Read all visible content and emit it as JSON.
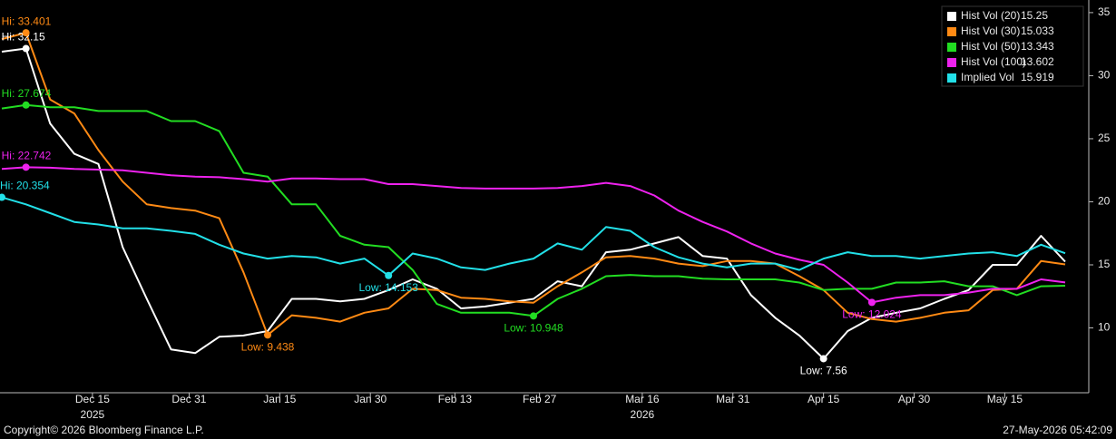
{
  "chart_data": {
    "type": "line",
    "x": [
      "2025-11-30",
      "2025-12-04",
      "2025-12-08",
      "2025-12-12",
      "2025-12-16",
      "2025-12-20",
      "2025-12-24",
      "2025-12-28",
      "2026-01-01",
      "2026-01-05",
      "2026-01-09",
      "2026-01-13",
      "2026-01-17",
      "2026-01-21",
      "2026-01-25",
      "2026-01-29",
      "2026-02-02",
      "2026-02-06",
      "2026-02-10",
      "2026-02-14",
      "2026-02-18",
      "2026-02-22",
      "2026-02-26",
      "2026-03-02",
      "2026-03-06",
      "2026-03-10",
      "2026-03-14",
      "2026-03-18",
      "2026-03-22",
      "2026-03-26",
      "2026-03-30",
      "2026-04-03",
      "2026-04-07",
      "2026-04-11",
      "2026-04-15",
      "2026-04-19",
      "2026-04-23",
      "2026-04-27",
      "2026-05-01",
      "2026-05-05",
      "2026-05-09",
      "2026-05-13",
      "2026-05-17",
      "2026-05-21",
      "2026-05-25"
    ],
    "series": [
      {
        "name": "Hist Vol (20)",
        "color": "#ffffff",
        "values": [
          31.9,
          32.15,
          26.2,
          23.8,
          23.0,
          16.4,
          12.3,
          8.3,
          8.0,
          9.3,
          9.4,
          9.75,
          12.3,
          12.3,
          12.1,
          12.3,
          13.0,
          13.85,
          13.1,
          11.55,
          11.7,
          12.0,
          12.3,
          13.7,
          13.3,
          16.0,
          16.2,
          16.7,
          17.2,
          15.7,
          15.5,
          12.6,
          10.8,
          9.4,
          7.56,
          9.75,
          10.8,
          11.2,
          11.55,
          12.3,
          13.0,
          15.0,
          15.0,
          17.3,
          15.25
        ],
        "value_labels": [
          null,
          "Hi: 32.15",
          null,
          null,
          null,
          null,
          null,
          null,
          null,
          null,
          null,
          null,
          null,
          null,
          null,
          null,
          null,
          null,
          null,
          null,
          null,
          null,
          null,
          null,
          null,
          null,
          null,
          null,
          null,
          null,
          null,
          null,
          null,
          null,
          "Low: 7.56",
          null,
          null,
          null,
          null,
          null,
          null,
          null,
          null,
          null,
          null
        ]
      },
      {
        "name": "Hist Vol (30)",
        "color": "#ff8a14",
        "values": [
          32.9,
          33.401,
          28.1,
          27.0,
          24.1,
          21.6,
          19.8,
          19.5,
          19.3,
          18.7,
          14.4,
          9.438,
          11.0,
          10.8,
          10.5,
          11.2,
          11.55,
          13.1,
          13.0,
          12.4,
          12.3,
          12.1,
          12.0,
          13.3,
          14.4,
          15.6,
          15.7,
          15.5,
          15.1,
          14.9,
          15.3,
          15.3,
          15.1,
          14.1,
          13.0,
          11.2,
          10.7,
          10.5,
          10.8,
          11.2,
          11.4,
          13.0,
          13.1,
          15.3,
          15.033
        ],
        "value_labels": [
          null,
          "Hi: 33.401",
          null,
          null,
          null,
          null,
          null,
          null,
          null,
          null,
          null,
          "Low: 9.438",
          null,
          null,
          null,
          null,
          null,
          null,
          null,
          null,
          null,
          null,
          null,
          null,
          null,
          null,
          null,
          null,
          null,
          null,
          null,
          null,
          null,
          null,
          null,
          null,
          null,
          null,
          null,
          null,
          null,
          null,
          null,
          null,
          null
        ]
      },
      {
        "name": "Hist Vol (50)",
        "color": "#22dd22",
        "values": [
          27.4,
          27.674,
          27.5,
          27.5,
          27.2,
          27.2,
          27.2,
          26.4,
          26.4,
          25.6,
          22.3,
          22.0,
          19.8,
          19.8,
          17.3,
          16.6,
          16.4,
          14.6,
          11.9,
          11.2,
          11.2,
          11.2,
          10.948,
          12.3,
          13.1,
          14.1,
          14.2,
          14.1,
          14.1,
          13.9,
          13.85,
          13.85,
          13.85,
          13.6,
          13.0,
          13.1,
          13.1,
          13.6,
          13.6,
          13.7,
          13.3,
          13.3,
          12.6,
          13.3,
          13.343
        ],
        "value_labels": [
          null,
          "Hi: 27.674",
          null,
          null,
          null,
          null,
          null,
          null,
          null,
          null,
          null,
          null,
          null,
          null,
          null,
          null,
          null,
          null,
          null,
          null,
          null,
          null,
          "Low: 10.948",
          null,
          null,
          null,
          null,
          null,
          null,
          null,
          null,
          null,
          null,
          null,
          null,
          null,
          null,
          null,
          null,
          null,
          null,
          null,
          null,
          null,
          null
        ]
      },
      {
        "name": "Hist Vol (100)",
        "color": "#ee22ee",
        "values": [
          22.6,
          22.742,
          22.7,
          22.6,
          22.55,
          22.5,
          22.3,
          22.1,
          22.0,
          21.95,
          21.8,
          21.6,
          21.85,
          21.85,
          21.8,
          21.8,
          21.4,
          21.4,
          21.25,
          21.1,
          21.05,
          21.05,
          21.05,
          21.1,
          21.25,
          21.5,
          21.25,
          20.5,
          19.3,
          18.4,
          17.65,
          16.7,
          15.9,
          15.4,
          15.0,
          13.6,
          12.024,
          12.4,
          12.6,
          12.6,
          12.8,
          13.1,
          13.1,
          13.85,
          13.602
        ],
        "value_labels": [
          null,
          "Hi: 22.742",
          null,
          null,
          null,
          null,
          null,
          null,
          null,
          null,
          null,
          null,
          null,
          null,
          null,
          null,
          null,
          null,
          null,
          null,
          null,
          null,
          null,
          null,
          null,
          null,
          null,
          null,
          null,
          null,
          null,
          null,
          null,
          null,
          null,
          null,
          "Low: 12.024",
          null,
          null,
          null,
          null,
          null,
          null,
          null,
          null
        ]
      },
      {
        "name": "Implied Vol",
        "color": "#22e0e8",
        "values": [
          20.354,
          19.8,
          19.1,
          18.4,
          18.2,
          17.9,
          17.9,
          17.7,
          17.45,
          16.6,
          15.9,
          15.5,
          15.7,
          15.6,
          15.1,
          15.5,
          14.153,
          15.9,
          15.5,
          14.8,
          14.6,
          15.1,
          15.5,
          16.7,
          16.2,
          18.0,
          17.7,
          16.4,
          15.6,
          15.1,
          14.8,
          15.1,
          15.1,
          14.6,
          15.5,
          16.0,
          15.7,
          15.7,
          15.5,
          15.7,
          15.9,
          16.0,
          15.7,
          16.6,
          15.919
        ],
        "value_labels": [
          "Hi: 20.354",
          null,
          null,
          null,
          null,
          null,
          null,
          null,
          null,
          null,
          null,
          null,
          null,
          null,
          null,
          null,
          "Low: 14.153",
          null,
          null,
          null,
          null,
          null,
          null,
          null,
          null,
          null,
          null,
          null,
          null,
          null,
          null,
          null,
          null,
          null,
          null,
          null,
          null,
          null,
          null,
          null,
          null,
          null,
          null,
          null,
          null
        ]
      }
    ],
    "xlim": [
      "2025-11-30",
      "2026-05-28"
    ],
    "xticks": [
      {
        "value": "2025-12-15",
        "label": "Dec 15"
      },
      {
        "value": "2025-12-31",
        "label": "Dec 31"
      },
      {
        "value": "2026-01-15",
        "label": "Jan 15"
      },
      {
        "value": "2026-01-30",
        "label": "Jan 30"
      },
      {
        "value": "2026-02-13",
        "label": "Feb 13"
      },
      {
        "value": "2026-02-27",
        "label": "Feb 27"
      },
      {
        "value": "2026-03-16",
        "label": "Mar 16"
      },
      {
        "value": "2026-03-31",
        "label": "Mar 31"
      },
      {
        "value": "2026-04-15",
        "label": "Apr 15"
      },
      {
        "value": "2026-04-30",
        "label": "Apr 30"
      },
      {
        "value": "2026-05-15",
        "label": "May 15"
      }
    ],
    "year_labels": [
      {
        "value": "2025-12-15",
        "label": "2025"
      },
      {
        "value": "2026-03-16",
        "label": "2026"
      }
    ],
    "ylim": [
      4.86,
      36.0
    ],
    "yticks": [
      10,
      15,
      20,
      25,
      30,
      35
    ],
    "legend": "top-right",
    "copyright": "Copyright© 2026 Bloomberg Finance L.P.",
    "timestamp": "27-May-2026 05:42:09"
  }
}
